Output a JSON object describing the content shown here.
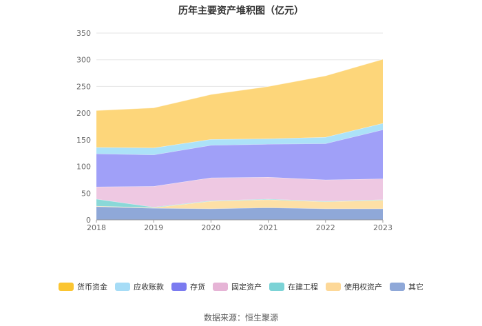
{
  "chart_data": {
    "type": "area",
    "stacked": true,
    "title": "历年主要资产堆积图（亿元）",
    "categories": [
      "2018",
      "2019",
      "2020",
      "2021",
      "2022",
      "2023"
    ],
    "ylim": [
      0,
      350
    ],
    "yticks": [
      0,
      50,
      100,
      150,
      200,
      250,
      300,
      350
    ],
    "grid": true,
    "legend_position": "bottom",
    "series": [
      {
        "name": "其它",
        "color": "#8fa8d8",
        "values": [
          25,
          22,
          21,
          23,
          21,
          21
        ]
      },
      {
        "name": "使用权资产",
        "color": "#fde0a6",
        "values": [
          1,
          1,
          14,
          15,
          13,
          16
        ]
      },
      {
        "name": "在建工程",
        "color": "#8ad8d8",
        "values": [
          13,
          1,
          1,
          1,
          1,
          1
        ]
      },
      {
        "name": "固定资产",
        "color": "#eec8e2",
        "values": [
          23,
          39,
          43,
          41,
          40,
          39
        ]
      },
      {
        "name": "存货",
        "color": "#a0a0f8",
        "values": [
          62,
          59,
          61,
          62,
          68,
          92
        ]
      },
      {
        "name": "应收账款",
        "color": "#ace2f8",
        "values": [
          12,
          13,
          11,
          10,
          12,
          12
        ]
      },
      {
        "name": "货币资金",
        "color": "#fdd67a",
        "values": [
          69,
          75,
          84,
          98,
          115,
          120
        ]
      }
    ]
  },
  "legend": [
    {
      "label": "货币资金",
      "color": "#fbc531"
    },
    {
      "label": "应收账款",
      "color": "#a6dcf6"
    },
    {
      "label": "存货",
      "color": "#7b7bf0"
    },
    {
      "label": "固定资产",
      "color": "#e6b4d6"
    },
    {
      "label": "在建工程",
      "color": "#7cd3d6"
    },
    {
      "label": "使用权资产",
      "color": "#fdd898"
    },
    {
      "label": "其它",
      "color": "#8fa8d8"
    }
  ],
  "source": "数据来源：恒生聚源"
}
